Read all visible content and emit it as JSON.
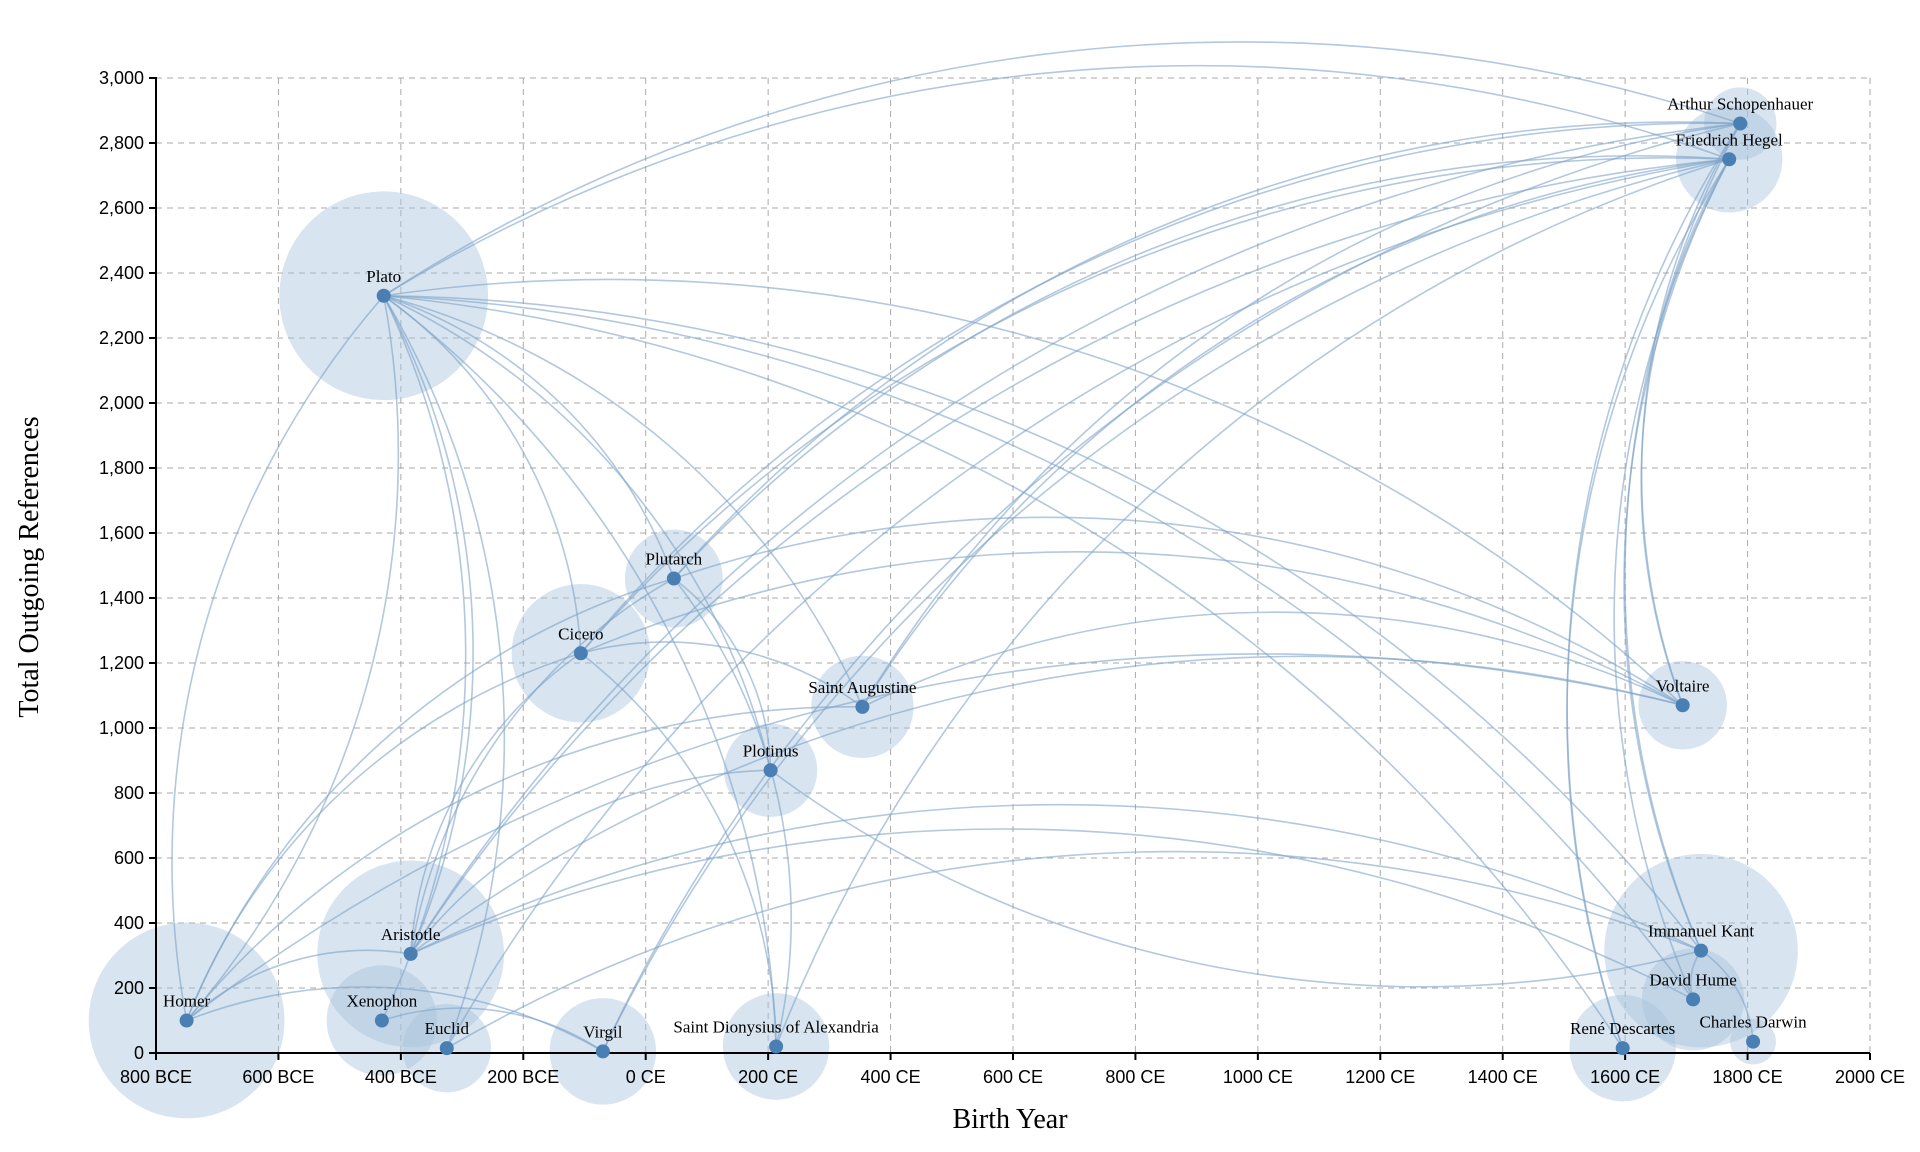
{
  "chart_data": {
    "type": "scatter",
    "xlabel": "Birth Year",
    "ylabel": "Total Outgoing References",
    "xlim": [
      -800,
      2000
    ],
    "ylim": [
      0,
      3000
    ],
    "grid": true,
    "x_ticks": [
      {
        "value": -800,
        "label": "800 BCE"
      },
      {
        "value": -600,
        "label": "600 BCE"
      },
      {
        "value": -400,
        "label": "400 BCE"
      },
      {
        "value": -200,
        "label": "200 BCE"
      },
      {
        "value": 0,
        "label": "0 CE"
      },
      {
        "value": 200,
        "label": "200 CE"
      },
      {
        "value": 400,
        "label": "400 CE"
      },
      {
        "value": 600,
        "label": "600 CE"
      },
      {
        "value": 800,
        "label": "800 CE"
      },
      {
        "value": 1000,
        "label": "1000 CE"
      },
      {
        "value": 1200,
        "label": "1200 CE"
      },
      {
        "value": 1400,
        "label": "1400 CE"
      },
      {
        "value": 1600,
        "label": "1600 CE"
      },
      {
        "value": 1800,
        "label": "1800 CE"
      },
      {
        "value": 2000,
        "label": "2000 CE"
      }
    ],
    "y_ticks": [
      {
        "value": 0,
        "label": "0"
      },
      {
        "value": 200,
        "label": "200"
      },
      {
        "value": 400,
        "label": "400"
      },
      {
        "value": 600,
        "label": "600"
      },
      {
        "value": 800,
        "label": "800"
      },
      {
        "value": 1000,
        "label": "1,000"
      },
      {
        "value": 1200,
        "label": "1,200"
      },
      {
        "value": 1400,
        "label": "1,400"
      },
      {
        "value": 1600,
        "label": "1,600"
      },
      {
        "value": 1800,
        "label": "1,800"
      },
      {
        "value": 2000,
        "label": "2,000"
      },
      {
        "value": 2200,
        "label": "2,200"
      },
      {
        "value": 2400,
        "label": "2,400"
      },
      {
        "value": 2600,
        "label": "2,600"
      },
      {
        "value": 2800,
        "label": "2,800"
      },
      {
        "value": 3000,
        "label": "3,000"
      }
    ],
    "points": [
      {
        "name": "Homer",
        "x": -750,
        "y": 100,
        "weight": 220
      },
      {
        "name": "Plato",
        "x": -428,
        "y": 2330,
        "weight": 250
      },
      {
        "name": "Xenophon",
        "x": -431,
        "y": 100,
        "weight": 70
      },
      {
        "name": "Aristotle",
        "x": -384,
        "y": 305,
        "weight": 200
      },
      {
        "name": "Euclid",
        "x": -325,
        "y": 15,
        "weight": 45
      },
      {
        "name": "Cicero",
        "x": -106,
        "y": 1230,
        "weight": 110
      },
      {
        "name": "Virgil",
        "x": -70,
        "y": 5,
        "weight": 65
      },
      {
        "name": "Plutarch",
        "x": 46,
        "y": 1460,
        "weight": 55
      },
      {
        "name": "Plotinus",
        "x": 204,
        "y": 870,
        "weight": 50
      },
      {
        "name": "Saint Dionysius of Alexandria",
        "x": 213,
        "y": 20,
        "weight": 65
      },
      {
        "name": "Saint Augustine",
        "x": 354,
        "y": 1065,
        "weight": 60
      },
      {
        "name": "René Descartes",
        "x": 1596,
        "y": 15,
        "weight": 65
      },
      {
        "name": "Voltaire",
        "x": 1694,
        "y": 1070,
        "weight": 45
      },
      {
        "name": "David Hume",
        "x": 1711,
        "y": 165,
        "weight": 60
      },
      {
        "name": "Immanuel Kant",
        "x": 1724,
        "y": 315,
        "weight": 215
      },
      {
        "name": "Friedrich Hegel",
        "x": 1770,
        "y": 2750,
        "weight": 65
      },
      {
        "name": "Arthur Schopenhauer",
        "x": 1788,
        "y": 2860,
        "weight": 30
      },
      {
        "name": "Charles Darwin",
        "x": 1809,
        "y": 35,
        "weight": 12
      }
    ],
    "links": [
      [
        "Plato",
        "Arthur Schopenhauer"
      ],
      [
        "Plato",
        "Friedrich Hegel"
      ],
      [
        "Plato",
        "Voltaire"
      ],
      [
        "Plato",
        "Immanuel Kant"
      ],
      [
        "Plato",
        "David Hume"
      ],
      [
        "Plato",
        "Aristotle"
      ],
      [
        "Plato",
        "Xenophon"
      ],
      [
        "Plato",
        "Homer"
      ],
      [
        "Plato",
        "Cicero"
      ],
      [
        "Plato",
        "Plutarch"
      ],
      [
        "Plato",
        "Plotinus"
      ],
      [
        "Plato",
        "Saint Augustine"
      ],
      [
        "Plato",
        "Saint Dionysius of Alexandria"
      ],
      [
        "Plato",
        "Euclid"
      ],
      [
        "Plato",
        "René Descartes"
      ],
      [
        "Homer",
        "Plato"
      ],
      [
        "Homer",
        "Plutarch"
      ],
      [
        "Homer",
        "Cicero"
      ],
      [
        "Homer",
        "Voltaire"
      ],
      [
        "Homer",
        "Virgil"
      ],
      [
        "Homer",
        "Aristotle"
      ],
      [
        "Homer",
        "Saint Augustine"
      ],
      [
        "Aristotle",
        "Friedrich Hegel"
      ],
      [
        "Aristotle",
        "Arthur Schopenhauer"
      ],
      [
        "Aristotle",
        "Plutarch"
      ],
      [
        "Aristotle",
        "Voltaire"
      ],
      [
        "Aristotle",
        "Immanuel Kant"
      ],
      [
        "Aristotle",
        "Cicero"
      ],
      [
        "Aristotle",
        "Plotinus"
      ],
      [
        "Aristotle",
        "David Hume"
      ],
      [
        "Cicero",
        "Friedrich Hegel"
      ],
      [
        "Cicero",
        "Voltaire"
      ],
      [
        "Cicero",
        "Saint Dionysius of Alexandria"
      ],
      [
        "Cicero",
        "Saint Augustine"
      ],
      [
        "Cicero",
        "Arthur Schopenhauer"
      ],
      [
        "Plutarch",
        "Friedrich Hegel"
      ],
      [
        "Plutarch",
        "Arthur Schopenhauer"
      ],
      [
        "Plutarch",
        "Voltaire"
      ],
      [
        "Plutarch",
        "Plotinus"
      ],
      [
        "Plutarch",
        "Saint Dionysius of Alexandria"
      ],
      [
        "Saint Augustine",
        "Friedrich Hegel"
      ],
      [
        "Saint Augustine",
        "Arthur Schopenhauer"
      ],
      [
        "Saint Augustine",
        "Voltaire"
      ],
      [
        "Virgil",
        "Friedrich Hegel"
      ],
      [
        "Virgil",
        "Arthur Schopenhauer"
      ],
      [
        "Euclid",
        "Friedrich Hegel"
      ],
      [
        "Euclid",
        "Immanuel Kant"
      ],
      [
        "Xenophon",
        "Virgil"
      ],
      [
        "Saint Dionysius of Alexandria",
        "Friedrich Hegel"
      ],
      [
        "René Descartes",
        "Friedrich Hegel"
      ],
      [
        "René Descartes",
        "Arthur Schopenhauer"
      ],
      [
        "Voltaire",
        "Friedrich Hegel"
      ],
      [
        "Voltaire",
        "Arthur Schopenhauer"
      ],
      [
        "David Hume",
        "Immanuel Kant"
      ],
      [
        "David Hume",
        "Friedrich Hegel"
      ],
      [
        "Immanuel Kant",
        "Arthur Schopenhauer"
      ],
      [
        "Immanuel Kant",
        "Friedrich Hegel"
      ],
      [
        "Immanuel Kant",
        "Charles Darwin"
      ],
      [
        "Immanuel Kant",
        "Plotinus"
      ]
    ]
  }
}
